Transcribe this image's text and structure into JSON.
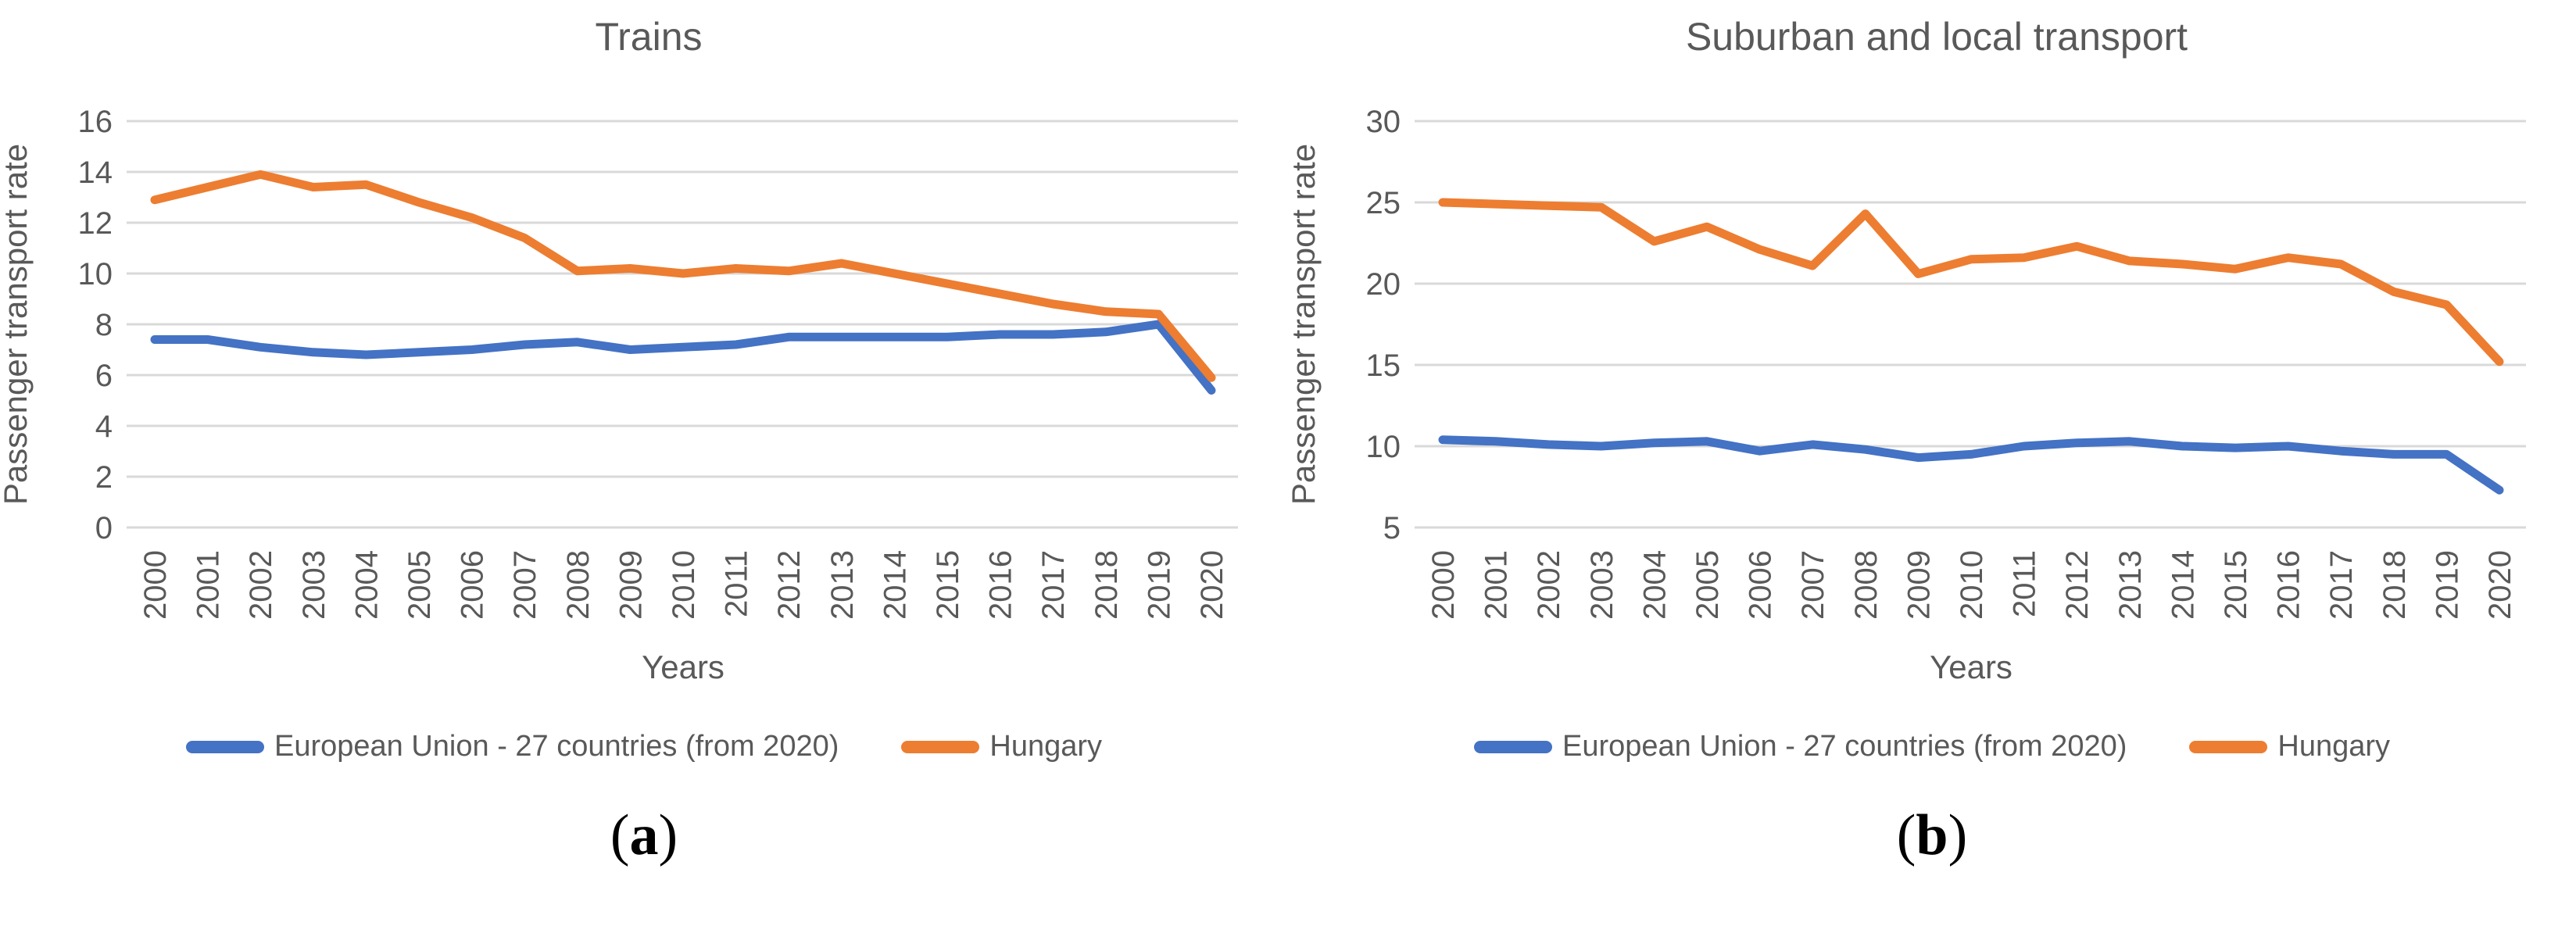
{
  "page": {
    "background": "#ffffff"
  },
  "colors": {
    "eu27_line": "#4472C4",
    "hungary_line": "#ED7D31",
    "text": "#595959",
    "gridline": "#D9D9D9",
    "caption_text": "#000000"
  },
  "chart_data": [
    {
      "id": "trains",
      "type": "line",
      "title": "Trains",
      "xlabel": "Years",
      "ylabel": "Passenger transport rate",
      "ylim": [
        0,
        16
      ],
      "ytick_step": 2,
      "grid": true,
      "legend_position": "bottom",
      "caption": "(a)",
      "categories": [
        "2000",
        "2001",
        "2002",
        "2003",
        "2004",
        "2005",
        "2006",
        "2007",
        "2008",
        "2009",
        "2010",
        "2011",
        "2012",
        "2013",
        "2014",
        "2015",
        "2016",
        "2017",
        "2018",
        "2019",
        "2020"
      ],
      "series": [
        {
          "id": "eu27",
          "name": "European Union - 27 countries (from 2020)",
          "color": "#4472C4",
          "values": [
            7.4,
            7.4,
            7.1,
            6.9,
            6.8,
            6.9,
            7.0,
            7.2,
            7.3,
            7.0,
            7.1,
            7.2,
            7.5,
            7.5,
            7.5,
            7.5,
            7.6,
            7.6,
            7.7,
            8.0,
            5.4
          ]
        },
        {
          "id": "hungary",
          "name": "Hungary",
          "color": "#ED7D31",
          "values": [
            12.9,
            13.4,
            13.9,
            13.4,
            13.5,
            12.8,
            12.2,
            11.4,
            10.1,
            10.2,
            10.0,
            10.2,
            10.1,
            10.4,
            10.0,
            9.6,
            9.2,
            8.8,
            8.5,
            8.4,
            5.9
          ]
        }
      ]
    },
    {
      "id": "suburban-local",
      "type": "line",
      "title": "Suburban and local transport",
      "xlabel": "Years",
      "ylabel": "Passenger transport rate",
      "ylim": [
        5,
        30
      ],
      "ytick_step": 5,
      "grid": true,
      "legend_position": "bottom",
      "caption": "(b)",
      "categories": [
        "2000",
        "2001",
        "2002",
        "2003",
        "2004",
        "2005",
        "2006",
        "2007",
        "2008",
        "2009",
        "2010",
        "2011",
        "2012",
        "2013",
        "2014",
        "2015",
        "2016",
        "2017",
        "2018",
        "2019",
        "2020"
      ],
      "series": [
        {
          "id": "eu27",
          "name": "European Union - 27 countries (from 2020)",
          "color": "#4472C4",
          "values": [
            10.4,
            10.3,
            10.1,
            10.0,
            10.2,
            10.3,
            9.7,
            10.1,
            9.8,
            9.3,
            9.5,
            10.0,
            10.2,
            10.3,
            10.0,
            9.9,
            10.0,
            9.7,
            9.5,
            9.5,
            7.3
          ]
        },
        {
          "id": "hungary",
          "name": "Hungary",
          "color": "#ED7D31",
          "values": [
            25.0,
            24.9,
            24.8,
            24.7,
            22.6,
            23.5,
            22.1,
            21.1,
            24.3,
            20.6,
            21.5,
            21.6,
            22.3,
            21.4,
            21.2,
            20.9,
            21.6,
            21.2,
            19.5,
            18.7,
            15.2
          ]
        }
      ]
    }
  ]
}
